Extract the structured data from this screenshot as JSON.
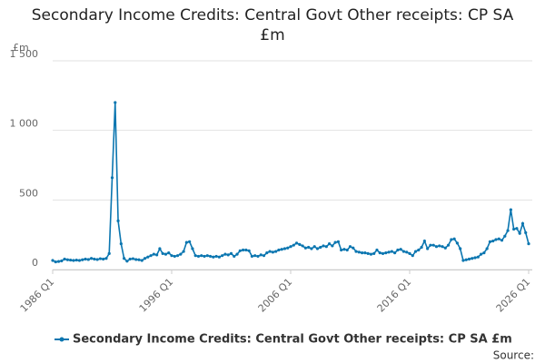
{
  "chart_data": {
    "type": "line",
    "title": "Secondary Income Credits: Central Govt Other receipts: CP SA £m",
    "y_unit": "£m",
    "source": "Source:",
    "categories": [
      "1986 Q1",
      null,
      null,
      null,
      null,
      null,
      null,
      null,
      null,
      null,
      null,
      null,
      null,
      null,
      null,
      null,
      null,
      null,
      null,
      null,
      null,
      null,
      null,
      null,
      null,
      null,
      null,
      null,
      null,
      null,
      null,
      null,
      null,
      null,
      null,
      null,
      null,
      null,
      null,
      null,
      "1996 Q1",
      null,
      null,
      null,
      null,
      null,
      null,
      null,
      null,
      null,
      null,
      null,
      null,
      null,
      null,
      null,
      null,
      null,
      null,
      null,
      null,
      null,
      null,
      null,
      null,
      null,
      null,
      null,
      null,
      null,
      null,
      null,
      null,
      null,
      null,
      null,
      null,
      null,
      null,
      null,
      "2006 Q1",
      null,
      null,
      null,
      null,
      null,
      null,
      null,
      null,
      null,
      null,
      null,
      null,
      null,
      null,
      null,
      null,
      null,
      null,
      null,
      null,
      null,
      null,
      null,
      null,
      null,
      null,
      null,
      null,
      null,
      null,
      null,
      null,
      null,
      null,
      null,
      null,
      null,
      null,
      null,
      "2016 Q1",
      null,
      null,
      null,
      null,
      null,
      null,
      null,
      null,
      null,
      null,
      null,
      null,
      null,
      null,
      null,
      null,
      null,
      null,
      null,
      null,
      null,
      null,
      null,
      null,
      null,
      null,
      null,
      null,
      null,
      null,
      null,
      null,
      null,
      null,
      null,
      null,
      null,
      null,
      null,
      "2026 Q1"
    ],
    "series": [
      {
        "name": "Secondary Income Credits: Central Govt Other receipts: CP SA £m",
        "color": "#0b76b0",
        "values": [
          65,
          55,
          58,
          62,
          75,
          70,
          68,
          65,
          68,
          65,
          70,
          75,
          72,
          80,
          75,
          72,
          78,
          75,
          80,
          115,
          660,
          1200,
          350,
          185,
          80,
          60,
          75,
          78,
          72,
          70,
          65,
          80,
          90,
          100,
          110,
          105,
          150,
          115,
          110,
          120,
          100,
          95,
          100,
          110,
          130,
          195,
          200,
          150,
          100,
          95,
          100,
          95,
          100,
          95,
          90,
          95,
          90,
          100,
          110,
          105,
          115,
          95,
          110,
          135,
          140,
          140,
          135,
          95,
          100,
          95,
          105,
          100,
          120,
          130,
          125,
          130,
          140,
          145,
          150,
          155,
          165,
          175,
          190,
          180,
          170,
          155,
          160,
          150,
          165,
          150,
          160,
          170,
          165,
          185,
          170,
          195,
          200,
          140,
          145,
          140,
          165,
          155,
          130,
          125,
          120,
          120,
          115,
          110,
          115,
          140,
          120,
          115,
          120,
          125,
          130,
          120,
          140,
          145,
          130,
          125,
          115,
          100,
          130,
          140,
          160,
          205,
          150,
          175,
          175,
          165,
          170,
          165,
          155,
          175,
          215,
          220,
          190,
          150,
          65,
          70,
          75,
          80,
          85,
          90,
          110,
          120,
          150,
          200,
          205,
          215,
          220,
          210,
          240,
          280,
          430,
          290,
          295,
          260,
          330,
          265,
          185
        ]
      }
    ],
    "ylim": [
      0,
      1500
    ],
    "yticks": [
      0,
      500,
      {
        "value": 1000,
        "label": "1 000"
      },
      {
        "value": 1500,
        "label": "1 500"
      }
    ],
    "grid": true
  }
}
